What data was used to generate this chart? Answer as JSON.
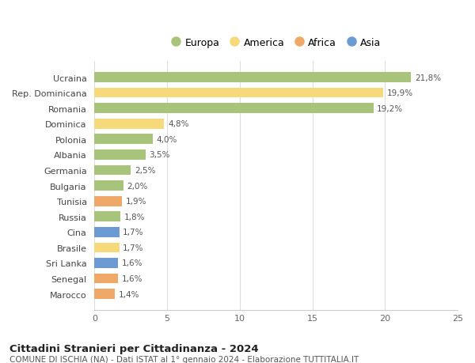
{
  "categories": [
    "Marocco",
    "Senegal",
    "Sri Lanka",
    "Brasile",
    "Cina",
    "Russia",
    "Tunisia",
    "Bulgaria",
    "Germania",
    "Albania",
    "Polonia",
    "Dominica",
    "Romania",
    "Rep. Dominicana",
    "Ucraina"
  ],
  "values": [
    1.4,
    1.6,
    1.6,
    1.7,
    1.7,
    1.8,
    1.9,
    2.0,
    2.5,
    3.5,
    4.0,
    4.8,
    19.2,
    19.9,
    21.8
  ],
  "labels": [
    "1,4%",
    "1,6%",
    "1,6%",
    "1,7%",
    "1,7%",
    "1,8%",
    "1,9%",
    "2,0%",
    "2,5%",
    "3,5%",
    "4,0%",
    "4,8%",
    "19,2%",
    "19,9%",
    "21,8%"
  ],
  "colors": [
    "#f0a868",
    "#f0a868",
    "#6b9bd2",
    "#f5d97a",
    "#6b9bd2",
    "#a8c47a",
    "#f0a868",
    "#a8c47a",
    "#a8c47a",
    "#a8c47a",
    "#a8c47a",
    "#f5d97a",
    "#a8c47a",
    "#f5d97a",
    "#a8c47a"
  ],
  "legend_labels": [
    "Europa",
    "America",
    "Africa",
    "Asia"
  ],
  "legend_colors": [
    "#a8c47a",
    "#f5d97a",
    "#f0a868",
    "#6b9bd2"
  ],
  "title": "Cittadini Stranieri per Cittadinanza - 2024",
  "subtitle": "COMUNE DI ISCHIA (NA) - Dati ISTAT al 1° gennaio 2024 - Elaborazione TUTTITALIA.IT",
  "xlim": [
    0,
    25
  ],
  "xticks": [
    0,
    5,
    10,
    15,
    20,
    25
  ],
  "background_color": "#ffffff",
  "bar_height": 0.65
}
